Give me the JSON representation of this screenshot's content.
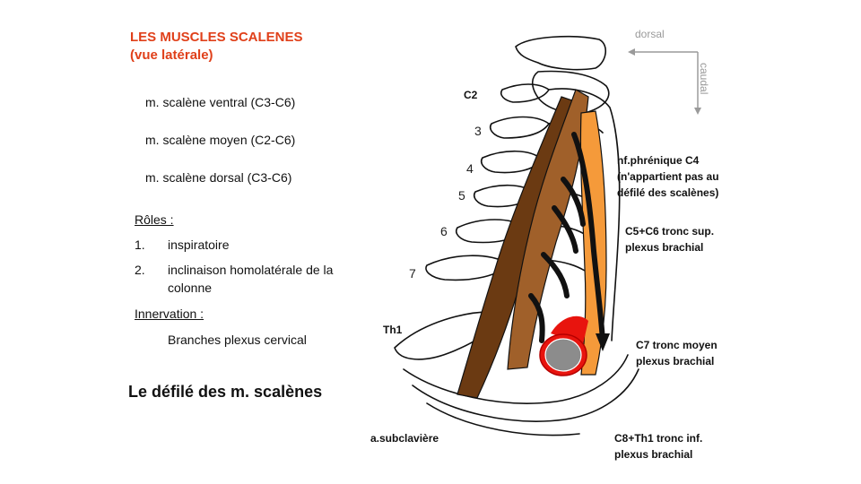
{
  "title": {
    "line1": "LES MUSCLES SCALENES",
    "line2": "(vue latérale)"
  },
  "muscles": [
    "m. scalène ventral  (C3-C6)",
    "m. scalène moyen  (C2-C6)",
    "m. scalène dorsal (C3-C6)"
  ],
  "roles": {
    "heading": "Rôles :",
    "items": [
      {
        "num": "1.",
        "text": "inspiratoire"
      },
      {
        "num": "2.",
        "text": "inclinaison homolatérale de la colonne"
      }
    ]
  },
  "innervation": {
    "heading": "Innervation  :",
    "text": "Branches plexus cervical"
  },
  "defile_title": "Le défilé des m. scalènes",
  "orientation": {
    "dorsal": "dorsal",
    "caudal": "caudal"
  },
  "vertebrae": {
    "c2": "C2",
    "c3": "3",
    "c4": "4",
    "c5": "5",
    "c6": "6",
    "c7": "7",
    "th1": "Th1"
  },
  "annotations": {
    "phrenic": [
      "nf.phrénique C4",
      "(n'appartient pas au",
      "défilé des scalènes)"
    ],
    "c5c6": [
      "C5+C6 tronc sup.",
      "plexus brachial"
    ],
    "c7": [
      "C7 tronc moyen",
      "plexus brachial"
    ],
    "c8th1": [
      "C8+Th1 tronc inf.",
      "plexus brachial"
    ],
    "subclavian": "a.subclavière"
  },
  "colors": {
    "title": "#e0401a",
    "ventral_muscle": "#6b3a12",
    "middle_muscle": "#a0602a",
    "dorsal_muscle": "#f59a3a",
    "nerve": "#111111",
    "artery": "#e8140e",
    "artery_lumen": "#8c8c8c"
  }
}
